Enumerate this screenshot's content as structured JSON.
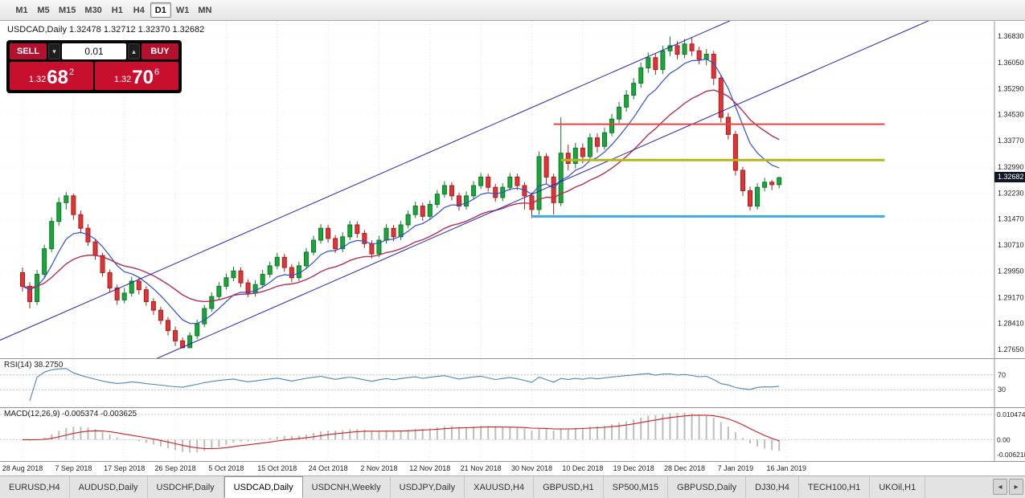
{
  "toolbar": {
    "timeframes": [
      "M1",
      "M5",
      "M15",
      "M30",
      "H1",
      "H4",
      "D1",
      "W1",
      "MN"
    ],
    "active": "D1"
  },
  "chart_header": {
    "text": "USDCAD,Daily  1.32478 1.32712 1.32370 1.32682"
  },
  "trade_panel": {
    "sell_label": "SELL",
    "buy_label": "BUY",
    "volume": "0.01",
    "stepper_down": "▾",
    "stepper_up": "▴",
    "sell_quote": {
      "prefix": "1.32",
      "big": "68",
      "sup": "2"
    },
    "buy_quote": {
      "prefix": "1.32",
      "big": "70",
      "sup": "6"
    }
  },
  "chart_data": {
    "type": "candlestick",
    "symbol": "USDCAD",
    "timeframe": "Daily",
    "ohlc_last": {
      "open": 1.32478,
      "high": 1.32712,
      "low": 1.3237,
      "close": 1.32682
    },
    "current_price_label": "1.32682",
    "y_ticks": [
      "1.36830",
      "1.36050",
      "1.35290",
      "1.34530",
      "1.33770",
      "1.32990",
      "1.32230",
      "1.31470",
      "1.30710",
      "1.29950",
      "1.29170",
      "1.28410",
      "1.27650"
    ],
    "x_labels": [
      "28 Aug 2018",
      "7 Sep 2018",
      "17 Sep 2018",
      "26 Sep 2018",
      "5 Oct 2018",
      "15 Oct 2018",
      "24 Oct 2018",
      "2 Nov 2018",
      "12 Nov 2018",
      "21 Nov 2018",
      "30 Nov 2018",
      "10 Dec 2018",
      "19 Dec 2018",
      "28 Dec 2018",
      "7 Jan 2019",
      "16 Jan 2019"
    ],
    "bars_per_label": 7,
    "up_color": "#1ca53a",
    "up_border": "#0b7a26",
    "down_color": "#e23434",
    "down_border": "#a61f1f",
    "ma_fast": {
      "period": 8,
      "color": "#2e4fd0"
    },
    "ma_slow": {
      "period": 21,
      "color": "#b03055"
    },
    "trendlines": [
      {
        "i_ref": -3.3,
        "p_ref": 1.279,
        "slope": 0.000933,
        "color": "#2020b2"
      },
      {
        "i_ref": 22.6,
        "p_ref": 1.2777,
        "slope": 0.000933,
        "color": "#2020b2"
      }
    ],
    "hlines": [
      {
        "price": 1.3425,
        "from": 73,
        "to": 118.5,
        "color": "#e84040",
        "width": 2
      },
      {
        "price": 1.332,
        "from": 74,
        "to": 118.5,
        "color": "#b5b51e",
        "width": 3
      },
      {
        "price": 1.3155,
        "from": 70,
        "to": 118.5,
        "color": "#3fa9e0",
        "width": 3
      }
    ],
    "rsi": {
      "label": "RSI(14) 38.2750",
      "period": 14,
      "levels": [
        "70",
        "30"
      ],
      "color": "#4a86b8"
    },
    "macd": {
      "label": "MACD(12,26,9) -0.005374 -0.003625",
      "fast": 12,
      "slow": 26,
      "signal": 9,
      "scale_labels": [
        "0.010474",
        "0.00",
        "-0.006218"
      ],
      "scale_values": [
        0.010474,
        0,
        -0.006218
      ],
      "hist_color": "#bdbdbd",
      "signal_color": "#cf1f1f"
    },
    "candles": [
      [
        1.299,
        1.3005,
        1.2935,
        1.295
      ],
      [
        1.295,
        1.2962,
        1.2885,
        1.2905
      ],
      [
        1.2905,
        1.2998,
        1.2895,
        1.2985
      ],
      [
        1.2985,
        1.3072,
        1.2975,
        1.306
      ],
      [
        1.306,
        1.3152,
        1.305,
        1.314
      ],
      [
        1.314,
        1.321,
        1.3128,
        1.3195
      ],
      [
        1.3195,
        1.3226,
        1.3175,
        1.3215
      ],
      [
        1.3215,
        1.3222,
        1.3145,
        1.316
      ],
      [
        1.316,
        1.3172,
        1.3105,
        1.312
      ],
      [
        1.312,
        1.3132,
        1.3068,
        1.308
      ],
      [
        1.308,
        1.309,
        1.3028,
        1.304
      ],
      [
        1.304,
        1.3048,
        1.2978,
        1.299
      ],
      [
        1.299,
        1.2999,
        1.2932,
        1.2945
      ],
      [
        1.2945,
        1.2955,
        1.2896,
        1.291
      ],
      [
        1.291,
        1.2945,
        1.29,
        1.293
      ],
      [
        1.293,
        1.2978,
        1.292,
        1.2965
      ],
      [
        1.2965,
        1.2975,
        1.2926,
        1.294
      ],
      [
        1.294,
        1.295,
        1.2893,
        1.2905
      ],
      [
        1.2905,
        1.2915,
        1.2866,
        1.288
      ],
      [
        1.288,
        1.289,
        1.2838,
        1.285
      ],
      [
        1.285,
        1.286,
        1.2806,
        1.282
      ],
      [
        1.282,
        1.2832,
        1.2775,
        1.279
      ],
      [
        1.279,
        1.28,
        1.2768,
        1.277
      ],
      [
        1.277,
        1.2815,
        1.277,
        1.2805
      ],
      [
        1.2805,
        1.2852,
        1.2795,
        1.284
      ],
      [
        1.284,
        1.2895,
        1.283,
        1.2885
      ],
      [
        1.2885,
        1.2932,
        1.2875,
        1.292
      ],
      [
        1.292,
        1.2962,
        1.291,
        1.295
      ],
      [
        1.295,
        1.2988,
        1.294,
        1.2975
      ],
      [
        1.2975,
        1.3008,
        1.2965,
        1.2995
      ],
      [
        1.2995,
        1.3005,
        1.2948,
        1.296
      ],
      [
        1.296,
        1.297,
        1.2918,
        1.293
      ],
      [
        1.293,
        1.2968,
        1.292,
        1.2955
      ],
      [
        1.2955,
        1.2998,
        1.2945,
        1.2985
      ],
      [
        1.2985,
        1.3022,
        1.2975,
        1.301
      ],
      [
        1.301,
        1.3048,
        1.3,
        1.3035
      ],
      [
        1.3035,
        1.3045,
        1.2993,
        1.3005
      ],
      [
        1.3005,
        1.3015,
        1.2962,
        1.2975
      ],
      [
        1.2975,
        1.3022,
        1.2965,
        1.301
      ],
      [
        1.301,
        1.3062,
        1.3,
        1.305
      ],
      [
        1.305,
        1.3098,
        1.304,
        1.3085
      ],
      [
        1.3085,
        1.3132,
        1.3075,
        1.312
      ],
      [
        1.312,
        1.313,
        1.3078,
        1.309
      ],
      [
        1.309,
        1.31,
        1.3048,
        1.306
      ],
      [
        1.306,
        1.3108,
        1.305,
        1.3095
      ],
      [
        1.3095,
        1.3142,
        1.3085,
        1.313
      ],
      [
        1.313,
        1.314,
        1.3092,
        1.3105
      ],
      [
        1.3105,
        1.3115,
        1.3062,
        1.3075
      ],
      [
        1.3075,
        1.3085,
        1.3032,
        1.3045
      ],
      [
        1.3045,
        1.3098,
        1.3035,
        1.3085
      ],
      [
        1.3085,
        1.3132,
        1.3075,
        1.312
      ],
      [
        1.312,
        1.313,
        1.3082,
        1.3095
      ],
      [
        1.3095,
        1.3142,
        1.3085,
        1.313
      ],
      [
        1.313,
        1.3172,
        1.312,
        1.316
      ],
      [
        1.316,
        1.3198,
        1.315,
        1.3185
      ],
      [
        1.3185,
        1.3195,
        1.3142,
        1.3155
      ],
      [
        1.3155,
        1.3202,
        1.3145,
        1.319
      ],
      [
        1.319,
        1.3232,
        1.318,
        1.322
      ],
      [
        1.322,
        1.3258,
        1.321,
        1.3245
      ],
      [
        1.3245,
        1.3255,
        1.3202,
        1.3215
      ],
      [
        1.3215,
        1.3225,
        1.3172,
        1.3185
      ],
      [
        1.3185,
        1.3228,
        1.3175,
        1.3215
      ],
      [
        1.3215,
        1.3258,
        1.3205,
        1.3245
      ],
      [
        1.3245,
        1.3282,
        1.3235,
        1.327
      ],
      [
        1.327,
        1.328,
        1.3228,
        1.324
      ],
      [
        1.324,
        1.325,
        1.3198,
        1.321
      ],
      [
        1.321,
        1.3252,
        1.32,
        1.324
      ],
      [
        1.324,
        1.3282,
        1.323,
        1.327
      ],
      [
        1.327,
        1.328,
        1.3232,
        1.3245
      ],
      [
        1.3245,
        1.3255,
        1.3175,
        1.3215
      ],
      [
        1.3215,
        1.3225,
        1.315,
        1.3175
      ],
      [
        1.3175,
        1.3345,
        1.316,
        1.333
      ],
      [
        1.333,
        1.334,
        1.325,
        1.327
      ],
      [
        1.327,
        1.328,
        1.316,
        1.3195
      ],
      [
        1.3195,
        1.3445,
        1.3185,
        1.334
      ],
      [
        1.334,
        1.3365,
        1.329,
        1.331
      ],
      [
        1.331,
        1.337,
        1.3295,
        1.3355
      ],
      [
        1.3355,
        1.3368,
        1.331,
        1.333
      ],
      [
        1.333,
        1.3398,
        1.332,
        1.3385
      ],
      [
        1.3385,
        1.3398,
        1.3342,
        1.336
      ],
      [
        1.336,
        1.3415,
        1.335,
        1.34
      ],
      [
        1.34,
        1.3455,
        1.339,
        1.344
      ],
      [
        1.344,
        1.349,
        1.3428,
        1.3475
      ],
      [
        1.3475,
        1.3525,
        1.3462,
        1.351
      ],
      [
        1.351,
        1.356,
        1.3498,
        1.3545
      ],
      [
        1.3545,
        1.3605,
        1.3532,
        1.359
      ],
      [
        1.359,
        1.3635,
        1.3575,
        1.362
      ],
      [
        1.362,
        1.3632,
        1.357,
        1.3585
      ],
      [
        1.3585,
        1.3655,
        1.3572,
        1.364
      ],
      [
        1.364,
        1.3682,
        1.3625,
        1.3655
      ],
      [
        1.3655,
        1.3668,
        1.3615,
        1.363
      ],
      [
        1.363,
        1.3675,
        1.3618,
        1.366
      ],
      [
        1.366,
        1.3678,
        1.3625,
        1.364
      ],
      [
        1.364,
        1.3652,
        1.36,
        1.3615
      ],
      [
        1.3615,
        1.3645,
        1.3598,
        1.363
      ],
      [
        1.363,
        1.364,
        1.354,
        1.356
      ],
      [
        1.356,
        1.357,
        1.343,
        1.3445
      ],
      [
        1.3445,
        1.3458,
        1.338,
        1.3395
      ],
      [
        1.3395,
        1.3405,
        1.3275,
        1.329
      ],
      [
        1.329,
        1.33,
        1.3215,
        1.323
      ],
      [
        1.323,
        1.3242,
        1.3172,
        1.3185
      ],
      [
        1.3185,
        1.3252,
        1.3175,
        1.324
      ],
      [
        1.324,
        1.3268,
        1.3228,
        1.3255
      ],
      [
        1.3255,
        1.3262,
        1.3232,
        1.32478
      ],
      [
        1.32478,
        1.32712,
        1.3237,
        1.32682
      ]
    ]
  },
  "tabs": {
    "items": [
      "EURUSD,H4",
      "AUDUSD,Daily",
      "USDCHF,Daily",
      "USDCAD,Daily",
      "USDCNH,Weekly",
      "USDJPY,Daily",
      "XAUUSD,H4",
      "GBPUSD,H1",
      "SP500,M15",
      "GBPUSD,Daily",
      "DJ30,H4",
      "TECH100,H1",
      "UKOil,H1"
    ],
    "active_index": 3,
    "nav_left": "◂",
    "nav_right": "▸"
  }
}
